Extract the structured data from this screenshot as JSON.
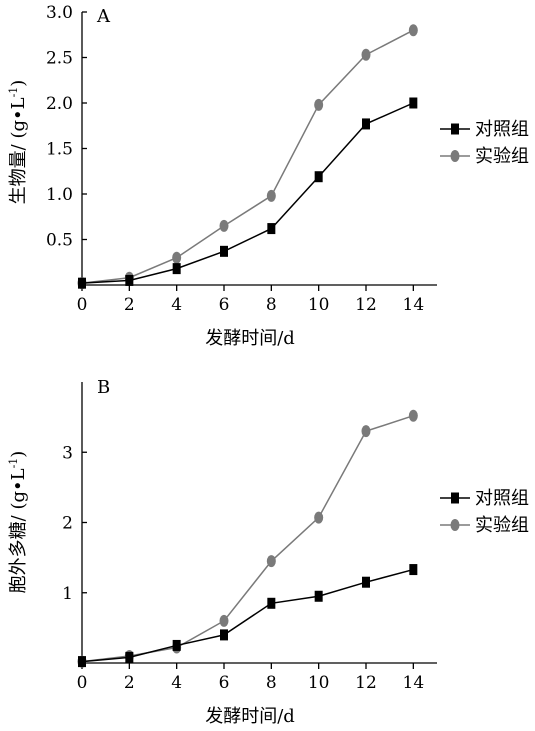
{
  "chart_data": [
    {
      "type": "line",
      "panel_label": "A",
      "xlabel": "发酵时间/d",
      "ylabel": "生物量/ (g•L",
      "ylabel_sup": "-1",
      "ylabel_close": ")",
      "x": [
        0,
        2,
        4,
        6,
        8,
        10,
        12,
        14
      ],
      "x_ticks": [
        "0",
        "2",
        "4",
        "6",
        "8",
        "10",
        "12",
        "14"
      ],
      "xlim": [
        0,
        15
      ],
      "ylim": [
        0,
        3.0
      ],
      "y_ticks": [
        0.5,
        1.0,
        1.5,
        2.0,
        2.5,
        3.0
      ],
      "y_tick_labels": [
        "0.5",
        "1.0",
        "1.5",
        "2.0",
        "2.5",
        "3.0"
      ],
      "legend_position": "right",
      "grid": false,
      "series": [
        {
          "name": "对照组",
          "marker": "square",
          "color": "#000000",
          "values": [
            0.02,
            0.05,
            0.18,
            0.37,
            0.62,
            1.19,
            1.77,
            2.0
          ]
        },
        {
          "name": "实验组",
          "marker": "circle",
          "color": "#7a7a7a",
          "values": [
            0.02,
            0.08,
            0.3,
            0.65,
            0.98,
            1.98,
            2.53,
            2.8
          ]
        }
      ]
    },
    {
      "type": "line",
      "panel_label": "B",
      "xlabel": "发酵时间/d",
      "ylabel": "胞外多糖/ (g•L",
      "ylabel_sup": "-1",
      "ylabel_close": ")",
      "x": [
        0,
        2,
        4,
        6,
        8,
        10,
        12,
        14
      ],
      "x_ticks": [
        "0",
        "2",
        "4",
        "6",
        "8",
        "10",
        "12",
        "14"
      ],
      "xlim": [
        0,
        15
      ],
      "ylim": [
        0,
        4.0
      ],
      "y_ticks": [
        1,
        2,
        3
      ],
      "y_tick_labels": [
        "1",
        "2",
        "3"
      ],
      "legend_position": "right",
      "grid": false,
      "series": [
        {
          "name": "对照组",
          "marker": "square",
          "color": "#000000",
          "values": [
            0.02,
            0.08,
            0.25,
            0.4,
            0.85,
            0.95,
            1.15,
            1.33
          ]
        },
        {
          "name": "实验组",
          "marker": "circle",
          "color": "#7a7a7a",
          "values": [
            0.02,
            0.1,
            0.22,
            0.6,
            1.45,
            2.07,
            3.3,
            3.52
          ]
        }
      ]
    }
  ]
}
